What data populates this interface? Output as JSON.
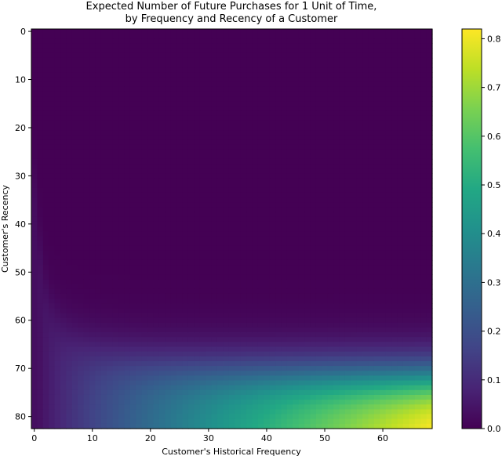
{
  "chart_data": {
    "type": "heatmap",
    "title_lines": [
      "Expected Number of Future Purchases for 1 Unit of Time,",
      "by Frequency and Recency of a Customer"
    ],
    "xlabel": "Customer's Historical Frequency",
    "ylabel": "Customer's Recency",
    "x_range": [
      0,
      68
    ],
    "y_range": [
      0,
      82
    ],
    "x_ticks": [
      "0",
      "10",
      "20",
      "30",
      "40",
      "50",
      "60"
    ],
    "y_ticks": [
      "0",
      "10",
      "20",
      "30",
      "40",
      "50",
      "60",
      "70",
      "80"
    ],
    "colorbar": {
      "colormap": "viridis",
      "range": [
        0,
        0.82
      ],
      "ticks": [
        "0.0",
        "0.1",
        "0.2",
        "0.3",
        "0.4",
        "0.5",
        "0.6",
        "0.7",
        "0.8"
      ]
    }
  }
}
